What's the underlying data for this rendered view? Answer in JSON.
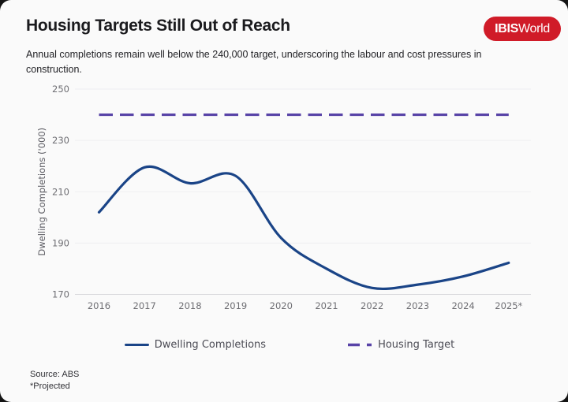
{
  "header": {
    "title": "Housing Targets Still Out of Reach",
    "subtitle": "Annual completions remain well below the 240,000 target, underscoring the labour and cost pressures in construction.",
    "logo": {
      "bold": "IBIS",
      "regular": "World",
      "bg_color": "#d01b28",
      "text_color": "#ffffff"
    }
  },
  "chart_data": {
    "type": "line",
    "title": "",
    "categories": [
      "2016",
      "2017",
      "2018",
      "2019",
      "2020",
      "2021",
      "2022",
      "2023",
      "2024",
      "2025*"
    ],
    "series": [
      {
        "name": "Dwelling Completions",
        "style": "solid",
        "color": "#1a4487",
        "values": [
          202,
          219.5,
          213.3,
          216.2,
          192,
          180,
          172.5,
          173.8,
          177,
          182.3
        ]
      },
      {
        "name": "Housing Target",
        "style": "dashed",
        "color": "#5843a7",
        "values": [
          240,
          240,
          240,
          240,
          240,
          240,
          240,
          240,
          240,
          240
        ]
      }
    ],
    "xlabel": "",
    "ylabel": "Dwelling Completions ('000)",
    "ylim": [
      170,
      250
    ],
    "yticks": [
      170,
      190,
      210,
      230,
      250
    ],
    "grid": "horizontal",
    "legend_position": "bottom"
  },
  "footer": {
    "source": "Source: ABS",
    "projected_note": "*Projected"
  },
  "colors": {
    "card_bg": "#fafafa",
    "gridline": "#efeff1",
    "axis_line": "#d9d9dc",
    "tick_text": "#6e6e73"
  }
}
